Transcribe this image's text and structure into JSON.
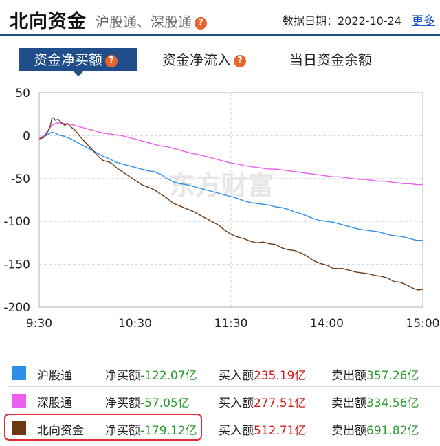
{
  "header": {
    "title": "北向资金",
    "subtitle": "沪股通、深股通",
    "help_icon": "?",
    "date_label": "数据日期：2022-10-24",
    "more_label": "更多"
  },
  "tabs": [
    {
      "label": "资金净买额",
      "active": true,
      "help_icon": "?"
    },
    {
      "label": "资金净流入",
      "active": false,
      "help_icon": "?"
    },
    {
      "label": "当日资金余额",
      "active": false
    }
  ],
  "colors": {
    "accent": "#1f4e8a",
    "help": "#e8642c",
    "hgt": "#2f8fe8",
    "sgt": "#ee5fee",
    "north": "#6b3a12",
    "positive": "#d31818",
    "negative": "#2a9a2a",
    "highlight": "#e52b35"
  },
  "chart_data": {
    "type": "line",
    "watermark": "东方财富",
    "x_ticks": [
      "9:30",
      "10:30",
      "11:30",
      "14:00",
      "15:00"
    ],
    "y_ticks": [
      50,
      0,
      -50,
      -100,
      -150,
      -200
    ],
    "ylim": [
      -200,
      50
    ],
    "xlim": [
      0,
      240
    ],
    "grid": true,
    "series": [
      {
        "name": "沪股通",
        "color": "#2f8fe8",
        "points": [
          [
            0,
            -3
          ],
          [
            3,
            -1
          ],
          [
            6,
            2
          ],
          [
            8,
            4
          ],
          [
            10,
            3
          ],
          [
            12,
            1
          ],
          [
            16,
            -1
          ],
          [
            20,
            -4
          ],
          [
            24,
            -8
          ],
          [
            28,
            -12
          ],
          [
            32,
            -16
          ],
          [
            36,
            -20
          ],
          [
            40,
            -24
          ],
          [
            44,
            -27
          ],
          [
            48,
            -31
          ],
          [
            52,
            -33
          ],
          [
            56,
            -35
          ],
          [
            60,
            -37
          ],
          [
            64,
            -39
          ],
          [
            68,
            -41
          ],
          [
            72,
            -42
          ],
          [
            76,
            -45
          ],
          [
            80,
            -50
          ],
          [
            84,
            -54
          ],
          [
            88,
            -56
          ],
          [
            92,
            -57
          ],
          [
            96,
            -59
          ],
          [
            100,
            -61
          ],
          [
            104,
            -63
          ],
          [
            108,
            -65
          ],
          [
            112,
            -67
          ],
          [
            116,
            -69
          ],
          [
            120,
            -71
          ],
          [
            124,
            -73
          ],
          [
            128,
            -76
          ],
          [
            132,
            -78
          ],
          [
            136,
            -79
          ],
          [
            140,
            -80
          ],
          [
            144,
            -81
          ],
          [
            148,
            -83
          ],
          [
            152,
            -84
          ],
          [
            156,
            -86
          ],
          [
            160,
            -89
          ],
          [
            164,
            -91
          ],
          [
            168,
            -94
          ],
          [
            172,
            -97
          ],
          [
            176,
            -99
          ],
          [
            180,
            -100
          ],
          [
            184,
            -101
          ],
          [
            188,
            -103
          ],
          [
            192,
            -105
          ],
          [
            196,
            -107
          ],
          [
            200,
            -109
          ],
          [
            204,
            -110
          ],
          [
            208,
            -111
          ],
          [
            212,
            -112
          ],
          [
            216,
            -114
          ],
          [
            220,
            -116
          ],
          [
            224,
            -117
          ],
          [
            228,
            -118
          ],
          [
            232,
            -120
          ],
          [
            236,
            -122
          ],
          [
            240,
            -122.07
          ]
        ]
      },
      {
        "name": "深股通",
        "color": "#ee5fee",
        "points": [
          [
            0,
            -3
          ],
          [
            3,
            0
          ],
          [
            6,
            7
          ],
          [
            8,
            12
          ],
          [
            10,
            14
          ],
          [
            12,
            15
          ],
          [
            16,
            14
          ],
          [
            20,
            13
          ],
          [
            24,
            11
          ],
          [
            28,
            9
          ],
          [
            32,
            7
          ],
          [
            36,
            5
          ],
          [
            40,
            3
          ],
          [
            44,
            2
          ],
          [
            48,
            1
          ],
          [
            52,
            0
          ],
          [
            56,
            -2
          ],
          [
            60,
            -4
          ],
          [
            64,
            -6
          ],
          [
            68,
            -8
          ],
          [
            72,
            -10
          ],
          [
            76,
            -12
          ],
          [
            80,
            -13
          ],
          [
            84,
            -15
          ],
          [
            88,
            -17
          ],
          [
            92,
            -19
          ],
          [
            96,
            -21
          ],
          [
            100,
            -22
          ],
          [
            104,
            -24
          ],
          [
            108,
            -26
          ],
          [
            112,
            -28
          ],
          [
            116,
            -30
          ],
          [
            120,
            -32
          ],
          [
            124,
            -33
          ],
          [
            128,
            -35
          ],
          [
            132,
            -36
          ],
          [
            136,
            -37
          ],
          [
            140,
            -38
          ],
          [
            144,
            -39
          ],
          [
            148,
            -39
          ],
          [
            152,
            -40
          ],
          [
            156,
            -41
          ],
          [
            160,
            -42
          ],
          [
            164,
            -43
          ],
          [
            168,
            -44
          ],
          [
            172,
            -45
          ],
          [
            176,
            -46
          ],
          [
            180,
            -47
          ],
          [
            184,
            -48
          ],
          [
            188,
            -48
          ],
          [
            192,
            -49
          ],
          [
            196,
            -50
          ],
          [
            200,
            -51
          ],
          [
            204,
            -51
          ],
          [
            208,
            -52
          ],
          [
            212,
            -53
          ],
          [
            216,
            -53
          ],
          [
            220,
            -54
          ],
          [
            224,
            -55
          ],
          [
            228,
            -56
          ],
          [
            232,
            -56
          ],
          [
            236,
            -57
          ],
          [
            240,
            -57.05
          ]
        ]
      },
      {
        "name": "北向资金",
        "color": "#6b3a12",
        "points": [
          [
            0,
            -4
          ],
          [
            3,
            -2
          ],
          [
            5,
            3
          ],
          [
            7,
            12
          ],
          [
            8,
            20
          ],
          [
            9,
            21
          ],
          [
            10,
            18
          ],
          [
            12,
            19
          ],
          [
            14,
            15
          ],
          [
            16,
            12
          ],
          [
            18,
            14
          ],
          [
            20,
            10
          ],
          [
            22,
            7
          ],
          [
            24,
            3
          ],
          [
            26,
            -2
          ],
          [
            28,
            -6
          ],
          [
            30,
            -10
          ],
          [
            32,
            -14
          ],
          [
            34,
            -18
          ],
          [
            36,
            -22
          ],
          [
            38,
            -26
          ],
          [
            40,
            -29
          ],
          [
            42,
            -30
          ],
          [
            44,
            -31
          ],
          [
            46,
            -33
          ],
          [
            48,
            -37
          ],
          [
            52,
            -42
          ],
          [
            56,
            -47
          ],
          [
            60,
            -52
          ],
          [
            64,
            -57
          ],
          [
            68,
            -60
          ],
          [
            72,
            -63
          ],
          [
            76,
            -68
          ],
          [
            80,
            -73
          ],
          [
            84,
            -79
          ],
          [
            88,
            -82
          ],
          [
            92,
            -85
          ],
          [
            96,
            -88
          ],
          [
            100,
            -92
          ],
          [
            104,
            -96
          ],
          [
            108,
            -100
          ],
          [
            112,
            -104
          ],
          [
            116,
            -110
          ],
          [
            120,
            -115
          ],
          [
            124,
            -118
          ],
          [
            128,
            -120
          ],
          [
            132,
            -123
          ],
          [
            136,
            -125
          ],
          [
            140,
            -124
          ],
          [
            144,
            -126
          ],
          [
            148,
            -127
          ],
          [
            152,
            -131
          ],
          [
            156,
            -133
          ],
          [
            160,
            -134
          ],
          [
            164,
            -137
          ],
          [
            168,
            -141
          ],
          [
            172,
            -146
          ],
          [
            176,
            -149
          ],
          [
            180,
            -151
          ],
          [
            184,
            -155
          ],
          [
            186,
            -155
          ],
          [
            190,
            -155
          ],
          [
            194,
            -157
          ],
          [
            198,
            -159
          ],
          [
            202,
            -160
          ],
          [
            206,
            -161
          ],
          [
            210,
            -163
          ],
          [
            214,
            -164
          ],
          [
            218,
            -166
          ],
          [
            222,
            -170
          ],
          [
            226,
            -171
          ],
          [
            230,
            -174
          ],
          [
            234,
            -178
          ],
          [
            237,
            -180
          ],
          [
            240,
            -179.12
          ]
        ]
      }
    ]
  },
  "legend": [
    {
      "name": "沪股通",
      "color": "#2f8fe8",
      "net_label": "净买额",
      "net_value": "-122.07亿",
      "buy_label": "买入额",
      "buy_value": "235.19亿",
      "sell_label": "卖出额",
      "sell_value": "357.26亿"
    },
    {
      "name": "深股通",
      "color": "#ee5fee",
      "net_label": "净买额",
      "net_value": "-57.05亿",
      "buy_label": "买入额",
      "buy_value": "277.51亿",
      "sell_label": "卖出额",
      "sell_value": "334.56亿"
    },
    {
      "name": "北向资金",
      "color": "#6b3a12",
      "net_label": "净买额",
      "net_value": "-179.12亿",
      "buy_label": "买入额",
      "buy_value": "512.71亿",
      "sell_label": "卖出额",
      "sell_value": "691.82亿"
    }
  ]
}
